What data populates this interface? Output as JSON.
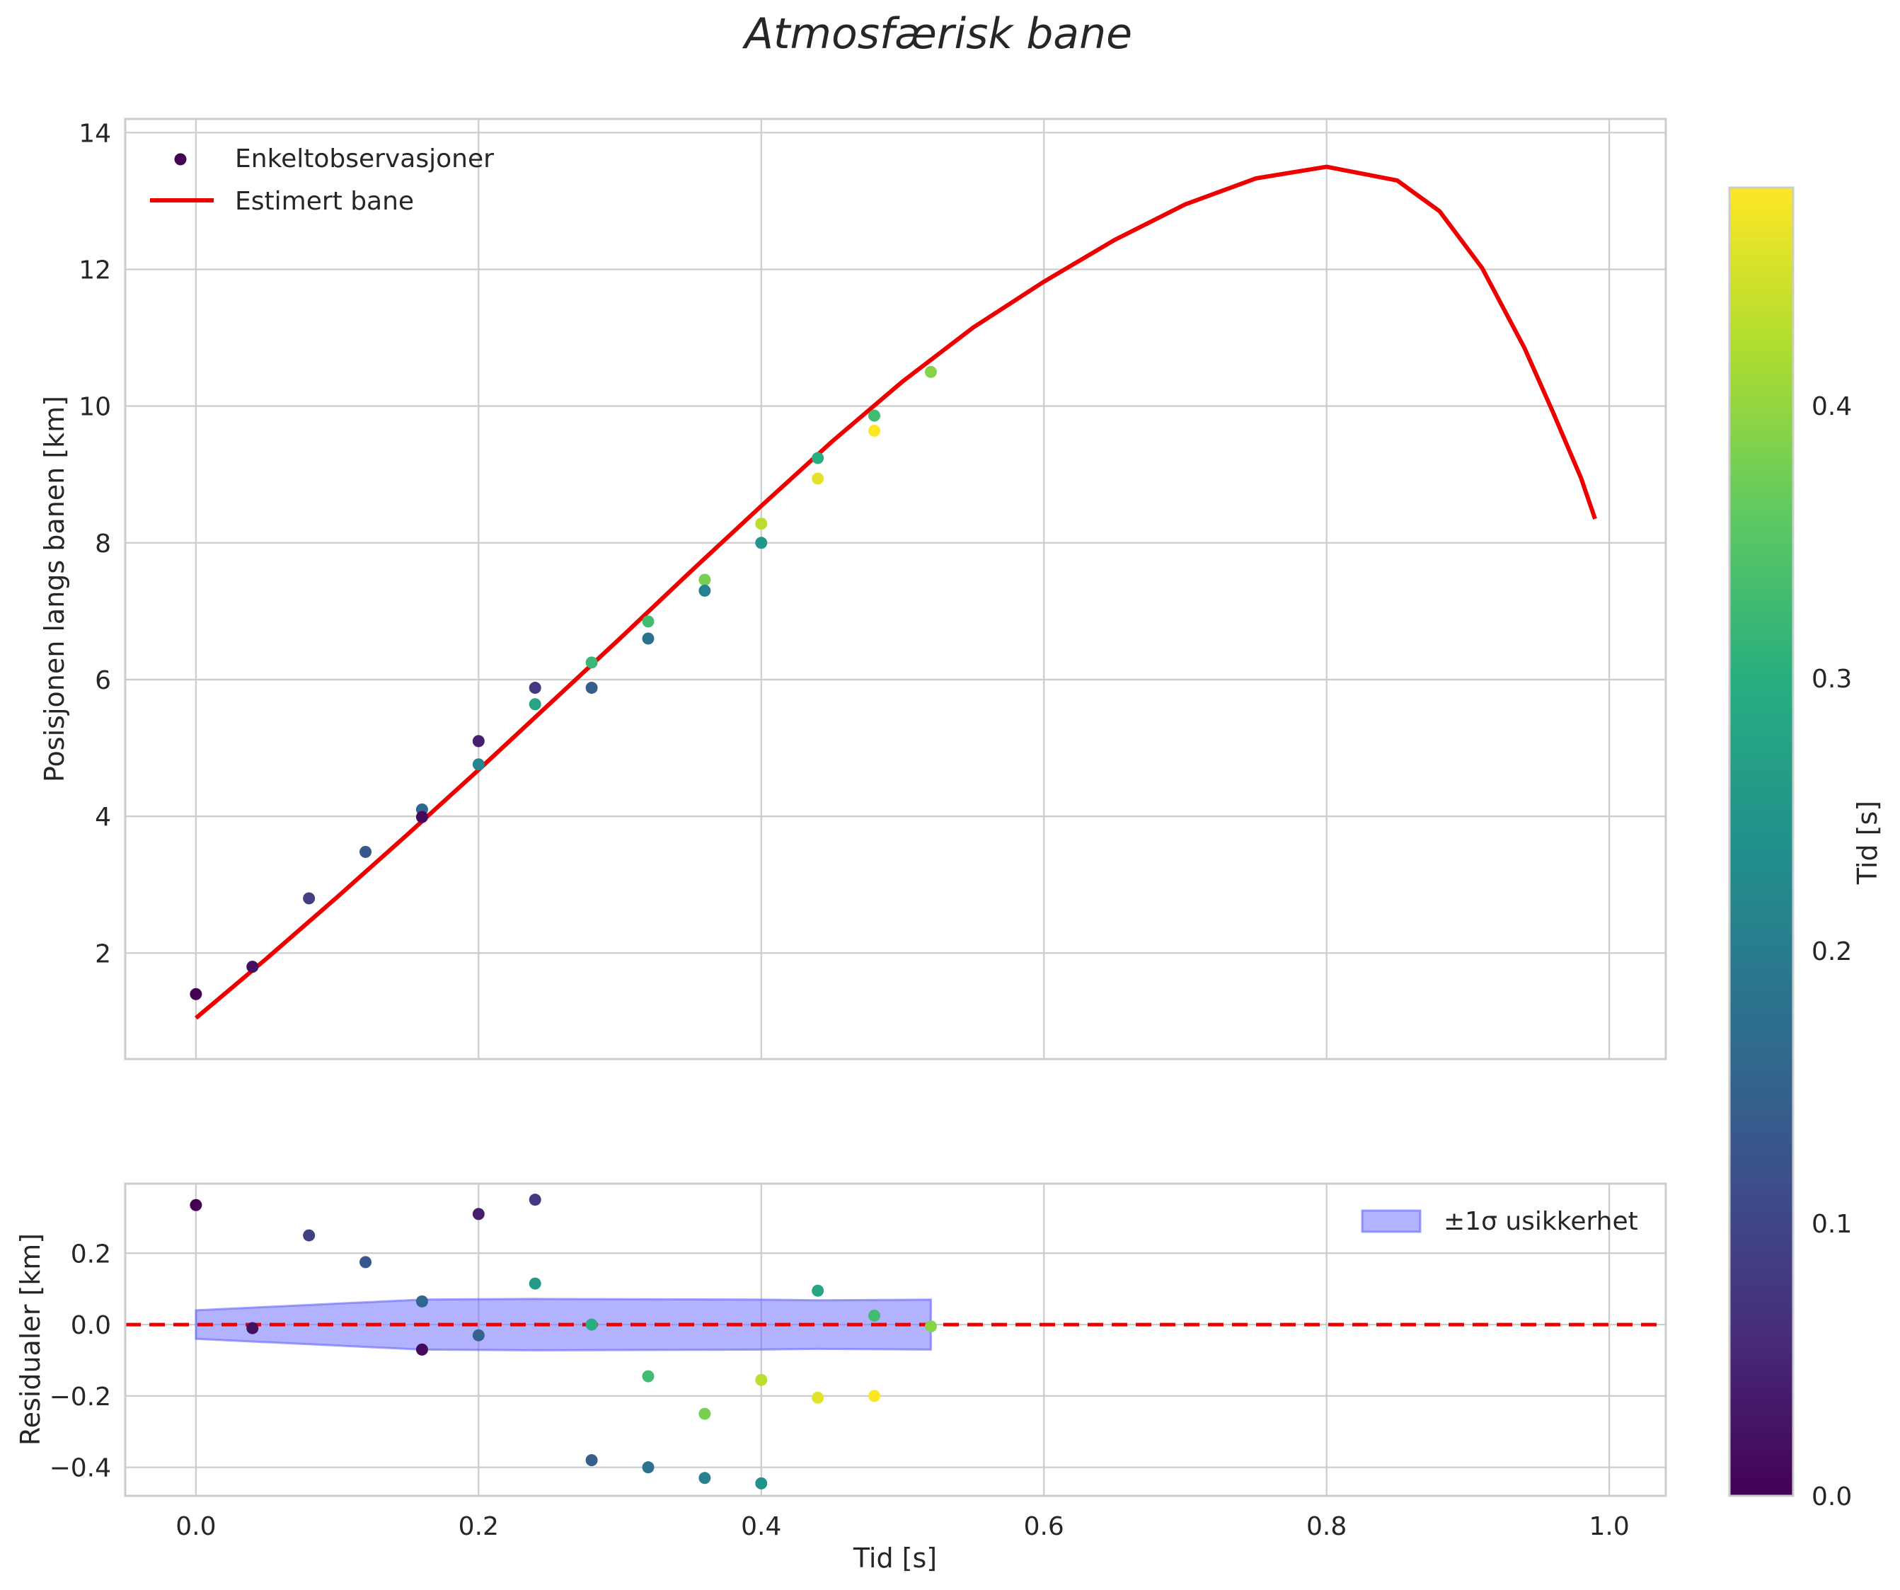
{
  "colors": {
    "fit_line": "#ee0000",
    "band_fill": "#6666ff",
    "zero_line": "#ee0000",
    "grid": "#cccccc"
  },
  "colorbar": {
    "label": "Tid [s]",
    "range": [
      0,
      0.48
    ],
    "ticks": [
      "0.0",
      "0.1",
      "0.2",
      "0.3",
      "0.4"
    ],
    "tick_values": [
      0,
      0.1,
      0.2,
      0.3,
      0.4
    ],
    "colormap": "viridis"
  },
  "chart_data": [
    {
      "type": "scatter",
      "title": "Atmosfærisk bane",
      "ylabel": "Posisjonen langs banen [km]",
      "xlim": [
        -0.05,
        1.04
      ],
      "ylim": [
        0.45,
        14.2
      ],
      "xticks": [
        0.0,
        0.2,
        0.4,
        0.6,
        0.8,
        1.0
      ],
      "yticks": [
        "2",
        "4",
        "6",
        "8",
        "10",
        "12",
        "14"
      ],
      "ytick_values": [
        2,
        4,
        6,
        8,
        10,
        12,
        14
      ],
      "legend": [
        "Enkeltobservasjoner",
        "Estimert bane"
      ],
      "legend_position": "top-left",
      "observations": [
        {
          "t": 0.0,
          "y": 1.4,
          "c": 0.0
        },
        {
          "t": 0.04,
          "y": 1.8,
          "c": 0.02
        },
        {
          "t": 0.08,
          "y": 2.8,
          "c": 0.09
        },
        {
          "t": 0.12,
          "y": 3.48,
          "c": 0.13
        },
        {
          "t": 0.16,
          "y": 4.1,
          "c": 0.16
        },
        {
          "t": 0.16,
          "y": 3.99,
          "c": 0.01
        },
        {
          "t": 0.2,
          "y": 5.1,
          "c": 0.04
        },
        {
          "t": 0.2,
          "y": 4.76,
          "c": 0.22
        },
        {
          "t": 0.24,
          "y": 5.88,
          "c": 0.08
        },
        {
          "t": 0.24,
          "y": 5.64,
          "c": 0.28
        },
        {
          "t": 0.28,
          "y": 6.25,
          "c": 0.32
        },
        {
          "t": 0.28,
          "y": 5.88,
          "c": 0.14
        },
        {
          "t": 0.32,
          "y": 6.85,
          "c": 0.33
        },
        {
          "t": 0.32,
          "y": 6.6,
          "c": 0.18
        },
        {
          "t": 0.36,
          "y": 7.46,
          "c": 0.38
        },
        {
          "t": 0.36,
          "y": 7.3,
          "c": 0.21
        },
        {
          "t": 0.4,
          "y": 8.28,
          "c": 0.43
        },
        {
          "t": 0.4,
          "y": 8.0,
          "c": 0.25
        },
        {
          "t": 0.44,
          "y": 9.24,
          "c": 0.3
        },
        {
          "t": 0.44,
          "y": 8.94,
          "c": 0.46
        },
        {
          "t": 0.48,
          "y": 9.86,
          "c": 0.33
        },
        {
          "t": 0.48,
          "y": 9.64,
          "c": 0.48
        },
        {
          "t": 0.52,
          "y": 10.5,
          "c": 0.39
        }
      ],
      "fit_curve": {
        "x": [
          0.0,
          0.05,
          0.1,
          0.15,
          0.2,
          0.25,
          0.3,
          0.35,
          0.4,
          0.45,
          0.5,
          0.55,
          0.6,
          0.65,
          0.7,
          0.75,
          0.8,
          0.85,
          0.88,
          0.91,
          0.94,
          0.96,
          0.98,
          0.99
        ],
        "y": [
          1.05,
          1.92,
          2.82,
          3.74,
          4.68,
          5.64,
          6.6,
          7.58,
          8.54,
          9.48,
          10.36,
          11.15,
          11.82,
          12.43,
          12.95,
          13.33,
          13.5,
          13.3,
          12.85,
          12.02,
          10.85,
          9.92,
          8.95,
          8.35
        ]
      }
    },
    {
      "type": "scatter",
      "xlabel": "Tid [s]",
      "ylabel": "Residualer [km]",
      "xlim": [
        -0.05,
        1.04
      ],
      "ylim": [
        -0.48,
        0.395
      ],
      "xticks": [
        "0.0",
        "0.2",
        "0.4",
        "0.6",
        "0.8",
        "1.0"
      ],
      "xtick_values": [
        0.0,
        0.2,
        0.4,
        0.6,
        0.8,
        1.0
      ],
      "yticks": [
        "−0.4",
        "−0.2",
        "0.0",
        "0.2"
      ],
      "ytick_values": [
        -0.4,
        -0.2,
        0.0,
        0.2
      ],
      "legend": [
        "±1σ usikkerhet"
      ],
      "legend_position": "top-right",
      "zero_line": 0,
      "residuals": [
        {
          "t": 0.0,
          "r": 0.335,
          "c": 0.0
        },
        {
          "t": 0.04,
          "r": -0.01,
          "c": 0.02
        },
        {
          "t": 0.08,
          "r": 0.25,
          "c": 0.09
        },
        {
          "t": 0.12,
          "r": 0.175,
          "c": 0.13
        },
        {
          "t": 0.16,
          "r": 0.065,
          "c": 0.16
        },
        {
          "t": 0.16,
          "r": -0.07,
          "c": 0.01
        },
        {
          "t": 0.2,
          "r": 0.31,
          "c": 0.04
        },
        {
          "t": 0.2,
          "r": -0.03,
          "c": 0.15
        },
        {
          "t": 0.24,
          "r": 0.35,
          "c": 0.08
        },
        {
          "t": 0.24,
          "r": 0.115,
          "c": 0.26
        },
        {
          "t": 0.28,
          "r": 0.0,
          "c": 0.3
        },
        {
          "t": 0.28,
          "r": -0.38,
          "c": 0.14
        },
        {
          "t": 0.32,
          "r": -0.145,
          "c": 0.33
        },
        {
          "t": 0.32,
          "r": -0.4,
          "c": 0.18
        },
        {
          "t": 0.36,
          "r": -0.25,
          "c": 0.38
        },
        {
          "t": 0.36,
          "r": -0.43,
          "c": 0.21
        },
        {
          "t": 0.4,
          "r": -0.155,
          "c": 0.43
        },
        {
          "t": 0.4,
          "r": -0.445,
          "c": 0.24
        },
        {
          "t": 0.44,
          "r": 0.095,
          "c": 0.28
        },
        {
          "t": 0.44,
          "r": -0.205,
          "c": 0.46
        },
        {
          "t": 0.48,
          "r": 0.025,
          "c": 0.33
        },
        {
          "t": 0.48,
          "r": -0.2,
          "c": 0.48
        },
        {
          "t": 0.52,
          "r": -0.005,
          "c": 0.39
        }
      ],
      "uncertainty_band": {
        "x": [
          0.0,
          0.16,
          0.24,
          0.4,
          0.44,
          0.52
        ],
        "half_width": [
          0.04,
          0.07,
          0.072,
          0.07,
          0.068,
          0.07
        ]
      }
    }
  ]
}
